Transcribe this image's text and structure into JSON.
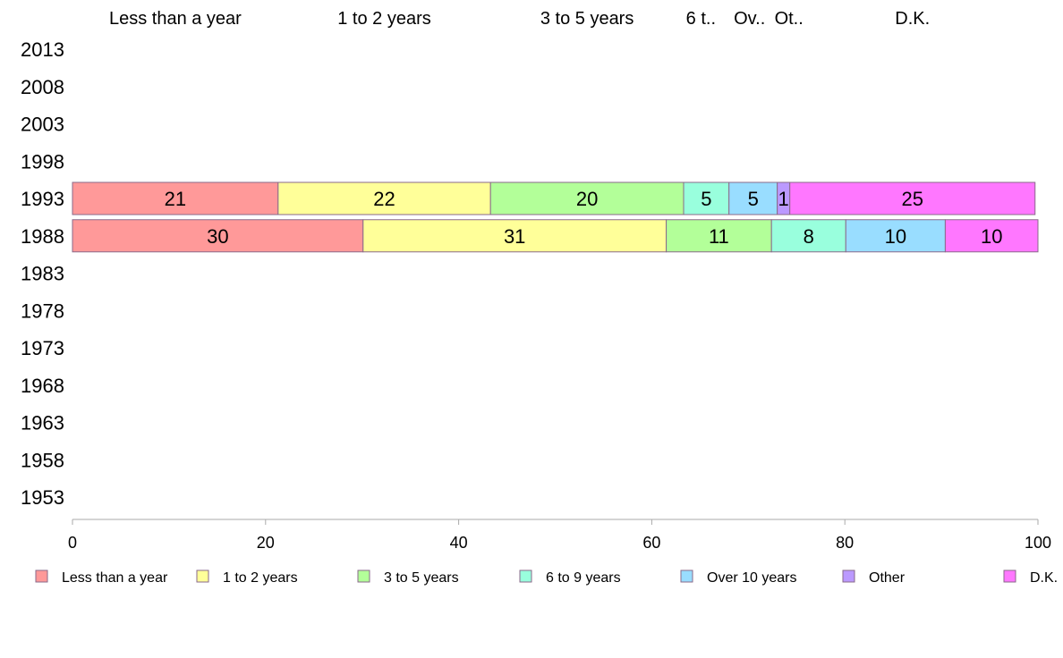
{
  "chart_data": {
    "type": "bar",
    "orientation": "horizontal-stacked",
    "years": [
      "2013",
      "2008",
      "2003",
      "1998",
      "1993",
      "1988",
      "1983",
      "1978",
      "1973",
      "1968",
      "1963",
      "1958",
      "1953"
    ],
    "categories": [
      "Less than a year",
      "1 to 2 years",
      "3 to 5 years",
      "6 to 9 years",
      "Over 10 years",
      "Other",
      "D.K."
    ],
    "top_labels": [
      "Less than a year",
      "1 to 2 years",
      "3 to 5 years",
      "6 t..",
      "Ov..",
      "Ot..",
      "D.K."
    ],
    "colors": [
      "#ff9999",
      "#ffff99",
      "#b3ff99",
      "#99ffdd",
      "#99ddff",
      "#bb99ff",
      "#ff77ff"
    ],
    "series": [
      {
        "year": "1993",
        "values": [
          21.3,
          22.0,
          20.0,
          4.7,
          5.0,
          1.3,
          25.4
        ],
        "labels": [
          "21",
          "22",
          "20",
          "5",
          "5",
          "1",
          "25"
        ]
      },
      {
        "year": "1988",
        "values": [
          30.1,
          31.4,
          10.9,
          7.7,
          10.3,
          0,
          9.6
        ],
        "labels": [
          "30",
          "31",
          "11",
          "8",
          "10",
          "",
          "10"
        ]
      }
    ],
    "xlim": [
      0,
      100
    ],
    "xticks": [
      "0",
      "20",
      "40",
      "60",
      "80",
      "100"
    ],
    "legend_position": "bottom"
  }
}
